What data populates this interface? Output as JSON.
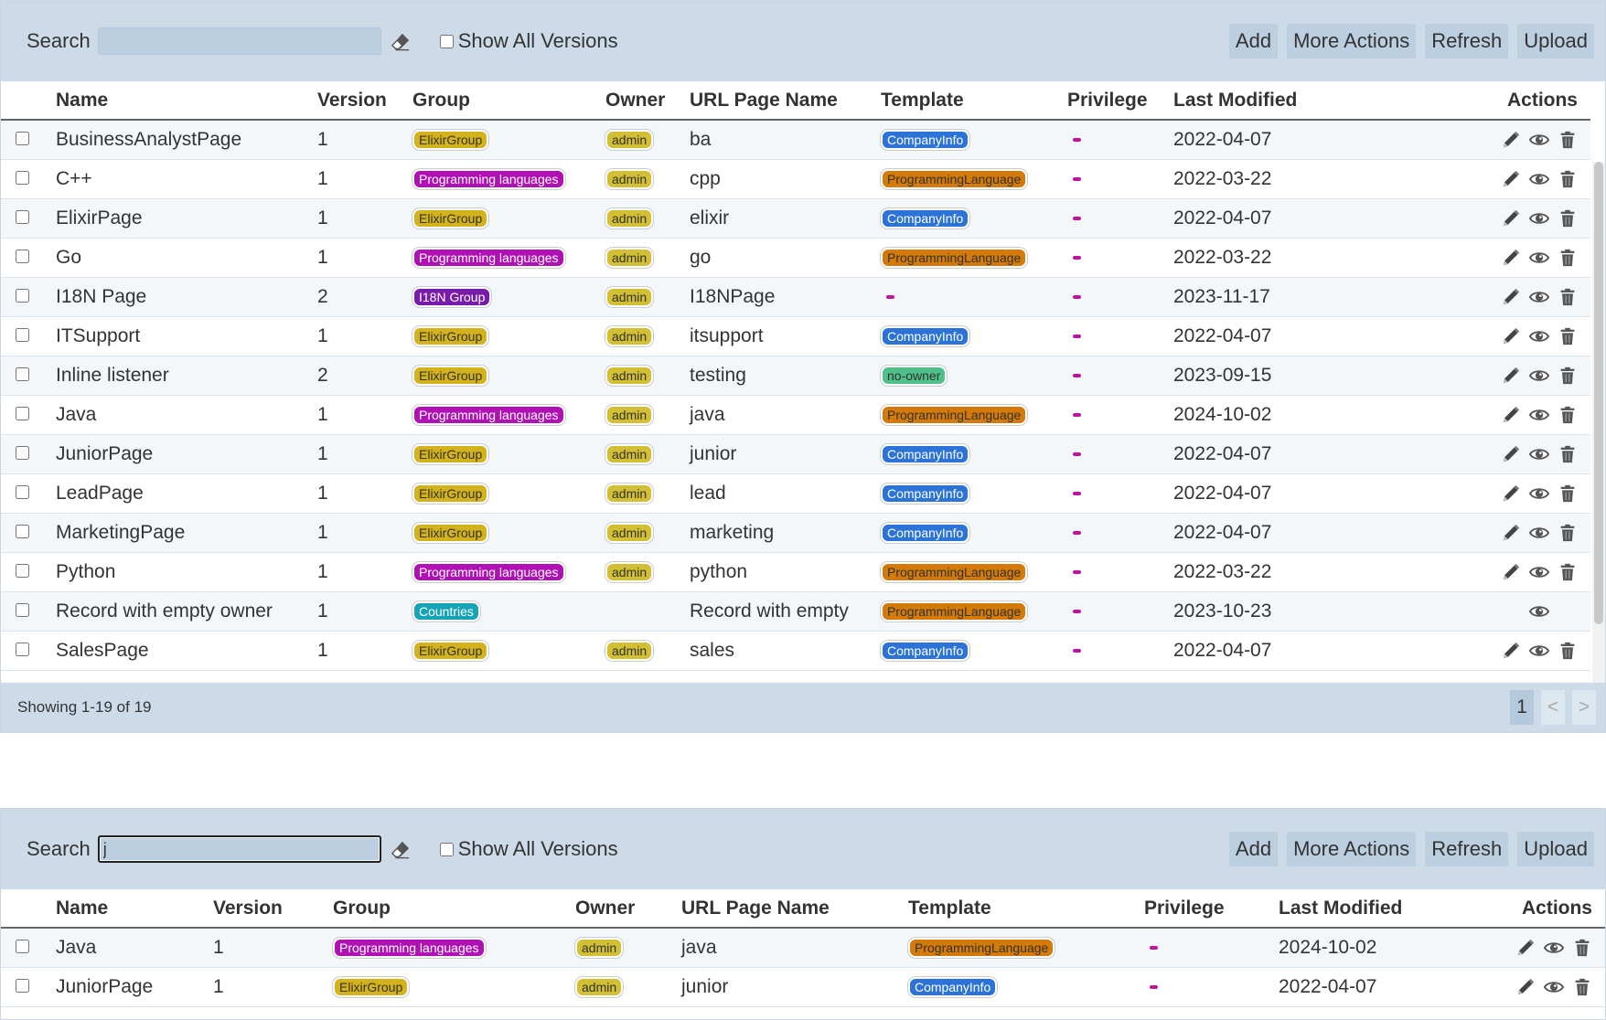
{
  "panel1": {
    "toolbar": {
      "search_label": "Search",
      "search_value": "",
      "show_all_versions_label": "Show All Versions",
      "add_label": "Add",
      "more_actions_label": "More Actions",
      "refresh_label": "Refresh",
      "upload_label": "Upload"
    },
    "columns": [
      "Name",
      "Version",
      "Group",
      "Owner",
      "URL Page Name",
      "Template",
      "Privilege",
      "Last Modified",
      "Actions"
    ],
    "rows": [
      {
        "name": "BusinessAnalystPage",
        "version": "1",
        "group": "ElixirGroup",
        "group_style": "elixir",
        "owner": "admin",
        "url": "ba",
        "template": "CompanyInfo",
        "template_style": "company",
        "modified": "2022-04-07",
        "editable": true
      },
      {
        "name": "C++",
        "version": "1",
        "group": "Programming languages",
        "group_style": "prog",
        "owner": "admin",
        "url": "cpp",
        "template": "ProgrammingLanguage",
        "template_style": "proglang",
        "modified": "2022-03-22",
        "editable": true
      },
      {
        "name": "ElixirPage",
        "version": "1",
        "group": "ElixirGroup",
        "group_style": "elixir",
        "owner": "admin",
        "url": "elixir",
        "template": "CompanyInfo",
        "template_style": "company",
        "modified": "2022-04-07",
        "editable": true
      },
      {
        "name": "Go",
        "version": "1",
        "group": "Programming languages",
        "group_style": "prog",
        "owner": "admin",
        "url": "go",
        "template": "ProgrammingLanguage",
        "template_style": "proglang",
        "modified": "2022-03-22",
        "editable": true
      },
      {
        "name": "I18N Page",
        "version": "2",
        "group": "I18N Group",
        "group_style": "i18n",
        "owner": "admin",
        "url": "I18NPage",
        "template": "",
        "template_style": "dash",
        "modified": "2023-11-17",
        "editable": true
      },
      {
        "name": "ITSupport",
        "version": "1",
        "group": "ElixirGroup",
        "group_style": "elixir",
        "owner": "admin",
        "url": "itsupport",
        "template": "CompanyInfo",
        "template_style": "company",
        "modified": "2022-04-07",
        "editable": true
      },
      {
        "name": "Inline listener",
        "version": "2",
        "group": "ElixirGroup",
        "group_style": "elixir",
        "owner": "admin",
        "url": "testing",
        "template": "no-owner",
        "template_style": "noowner",
        "modified": "2023-09-15",
        "editable": true
      },
      {
        "name": "Java",
        "version": "1",
        "group": "Programming languages",
        "group_style": "prog",
        "owner": "admin",
        "url": "java",
        "template": "ProgrammingLanguage",
        "template_style": "proglang",
        "modified": "2024-10-02",
        "editable": true
      },
      {
        "name": "JuniorPage",
        "version": "1",
        "group": "ElixirGroup",
        "group_style": "elixir",
        "owner": "admin",
        "url": "junior",
        "template": "CompanyInfo",
        "template_style": "company",
        "modified": "2022-04-07",
        "editable": true
      },
      {
        "name": "LeadPage",
        "version": "1",
        "group": "ElixirGroup",
        "group_style": "elixir",
        "owner": "admin",
        "url": "lead",
        "template": "CompanyInfo",
        "template_style": "company",
        "modified": "2022-04-07",
        "editable": true
      },
      {
        "name": "MarketingPage",
        "version": "1",
        "group": "ElixirGroup",
        "group_style": "elixir",
        "owner": "admin",
        "url": "marketing",
        "template": "CompanyInfo",
        "template_style": "company",
        "modified": "2022-04-07",
        "editable": true
      },
      {
        "name": "Python",
        "version": "1",
        "group": "Programming languages",
        "group_style": "prog",
        "owner": "admin",
        "url": "python",
        "template": "ProgrammingLanguage",
        "template_style": "proglang",
        "modified": "2022-03-22",
        "editable": true
      },
      {
        "name": "Record with empty owner",
        "version": "1",
        "group": "Countries",
        "group_style": "countries",
        "owner": "",
        "url": "Record with empty",
        "template": "ProgrammingLanguage",
        "template_style": "proglang",
        "modified": "2023-10-23",
        "editable": false
      },
      {
        "name": "SalesPage",
        "version": "1",
        "group": "ElixirGroup",
        "group_style": "elixir",
        "owner": "admin",
        "url": "sales",
        "template": "CompanyInfo",
        "template_style": "company",
        "modified": "2022-04-07",
        "editable": true
      }
    ],
    "footer": {
      "showing": "Showing 1-19 of 19",
      "current_page": "1",
      "prev": "<",
      "next": ">"
    }
  },
  "panel2": {
    "toolbar": {
      "search_label": "Search",
      "search_value": "j",
      "show_all_versions_label": "Show All Versions",
      "add_label": "Add",
      "more_actions_label": "More Actions",
      "refresh_label": "Refresh",
      "upload_label": "Upload"
    },
    "columns": [
      "Name",
      "Version",
      "Group",
      "Owner",
      "URL Page Name",
      "Template",
      "Privilege",
      "Last Modified",
      "Actions"
    ],
    "rows": [
      {
        "name": "Java",
        "version": "1",
        "group": "Programming languages",
        "group_style": "prog",
        "owner": "admin",
        "url": "java",
        "template": "ProgrammingLanguage",
        "template_style": "proglang",
        "modified": "2024-10-02",
        "editable": true
      },
      {
        "name": "JuniorPage",
        "version": "1",
        "group": "ElixirGroup",
        "group_style": "elixir",
        "owner": "admin",
        "url": "junior",
        "template": "CompanyInfo",
        "template_style": "company",
        "modified": "2022-04-07",
        "editable": true
      }
    ]
  },
  "icons": {
    "eraser": "eraser-icon",
    "edit": "pencil-icon",
    "view": "eye-icon",
    "delete": "trash-icon"
  }
}
